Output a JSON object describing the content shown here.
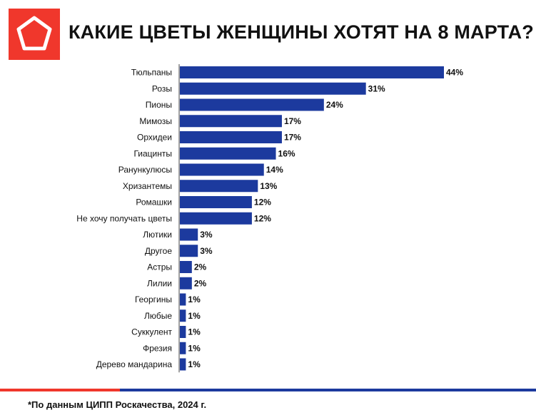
{
  "header": {
    "title": "КАКИЕ ЦВЕТЫ ЖЕНЩИНЫ ХОТЯТ НА 8 МАРТА?",
    "logo_icon": "pentagon-logo-icon"
  },
  "colors": {
    "brand_red": "#f0372c",
    "bar_blue": "#1c3a9e"
  },
  "chart_data": {
    "type": "bar",
    "orientation": "horizontal",
    "title": "КАКИЕ ЦВЕТЫ ЖЕНЩИНЫ ХОТЯТ НА 8 МАРТА?",
    "xlabel": "",
    "ylabel": "",
    "value_suffix": "%",
    "xlim": [
      0,
      44
    ],
    "grid": false,
    "categories": [
      "Тюльпаны",
      "Розы",
      "Пионы",
      "Мимозы",
      "Орхидеи",
      "Гиацинты",
      "Ранункулюсы",
      "Хризантемы",
      "Ромашки",
      "Не хочу получать цветы",
      "Лютики",
      "Другое",
      "Астры",
      "Лилии",
      "Георгины",
      "Любые",
      "Суккулент",
      "Фрезия",
      "Дерево мандарина"
    ],
    "values": [
      44,
      31,
      24,
      17,
      17,
      16,
      14,
      13,
      12,
      12,
      3,
      3,
      2,
      2,
      1,
      1,
      1,
      1,
      1
    ]
  },
  "footer": {
    "note": "*По данным ЦИПП Роскачества, 2024 г."
  }
}
